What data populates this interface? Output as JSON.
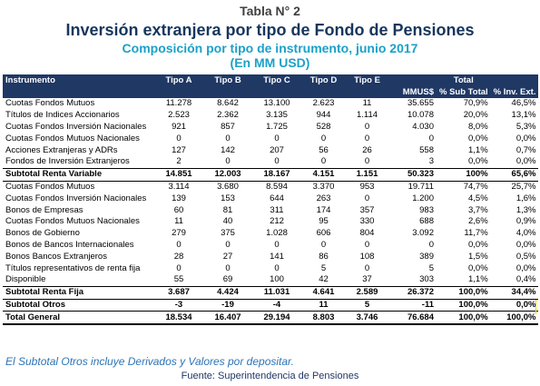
{
  "caption": "Tabla N° 2",
  "title": "Inversión extranjera por tipo de Fondo de Pensiones",
  "subtitle": "Composición por tipo de instrumento, junio 2017",
  "units": "(En MM USD)",
  "table": {
    "header_top": {
      "instrumento": "Instrumento",
      "tipo_a": "Tipo A",
      "tipo_b": "Tipo B",
      "tipo_c": "Tipo C",
      "tipo_d": "Tipo D",
      "tipo_e": "Tipo E",
      "total": "Total"
    },
    "header_sub": {
      "mmus": "MMUS$",
      "pct_sub": "% Sub Total",
      "pct_inv": "% Inv. Ext."
    },
    "rows": [
      {
        "kind": "row",
        "cells": [
          "Cuotas Fondos Mutuos",
          "11.278",
          "8.642",
          "13.100",
          "2.623",
          "11",
          "35.655",
          "70,9%",
          "46,5%"
        ]
      },
      {
        "kind": "row",
        "cells": [
          "Títulos de Indices Accionarios",
          "2.523",
          "2.362",
          "3.135",
          "944",
          "1.114",
          "10.078",
          "20,0%",
          "13,1%"
        ]
      },
      {
        "kind": "row",
        "cells": [
          "Cuotas Fondos Inversión Nacionales",
          "921",
          "857",
          "1.725",
          "528",
          "0",
          "4.030",
          "8,0%",
          "5,3%"
        ]
      },
      {
        "kind": "row",
        "cells": [
          "Cuotas Fondos Mutuos Nacionales",
          "0",
          "0",
          "0",
          "0",
          "0",
          "0",
          "0,0%",
          "0,0%"
        ]
      },
      {
        "kind": "row",
        "cells": [
          "Acciones Extranjeras y ADRs",
          "127",
          "142",
          "207",
          "56",
          "26",
          "558",
          "1,1%",
          "0,7%"
        ]
      },
      {
        "kind": "row",
        "cells": [
          "Fondos de Inversión Extranjeros",
          "2",
          "0",
          "0",
          "0",
          "0",
          "3",
          "0,0%",
          "0,0%"
        ]
      },
      {
        "kind": "subtotal",
        "cells": [
          "Subtotal Renta Variable",
          "14.851",
          "12.003",
          "18.167",
          "4.151",
          "1.151",
          "50.323",
          "100%",
          "65,6%"
        ]
      },
      {
        "kind": "row",
        "cells": [
          "Cuotas Fondos Mutuos",
          "3.114",
          "3.680",
          "8.594",
          "3.370",
          "953",
          "19.711",
          "74,7%",
          "25,7%"
        ]
      },
      {
        "kind": "row",
        "cells": [
          "Cuotas Fondos Inversión Nacionales",
          "139",
          "153",
          "644",
          "263",
          "0",
          "1.200",
          "4,5%",
          "1,6%"
        ]
      },
      {
        "kind": "row",
        "cells": [
          "Bonos de Empresas",
          "60",
          "81",
          "311",
          "174",
          "357",
          "983",
          "3,7%",
          "1,3%"
        ]
      },
      {
        "kind": "row",
        "cells": [
          "Cuotas Fondos Mutuos Nacionales",
          "11",
          "40",
          "212",
          "95",
          "330",
          "688",
          "2,6%",
          "0,9%"
        ]
      },
      {
        "kind": "row",
        "cells": [
          "Bonos de Gobierno",
          "279",
          "375",
          "1.028",
          "606",
          "804",
          "3.092",
          "11,7%",
          "4,0%"
        ]
      },
      {
        "kind": "row",
        "cells": [
          "Bonos de Bancos Internacionales",
          "0",
          "0",
          "0",
          "0",
          "0",
          "0",
          "0,0%",
          "0,0%"
        ]
      },
      {
        "kind": "row",
        "cells": [
          "Bonos Bancos Extranjeros",
          "28",
          "27",
          "141",
          "86",
          "108",
          "389",
          "1,5%",
          "0,5%"
        ]
      },
      {
        "kind": "row",
        "cells": [
          "Títulos representativos de renta fija",
          "0",
          "0",
          "0",
          "5",
          "0",
          "5",
          "0,0%",
          "0,0%"
        ]
      },
      {
        "kind": "row",
        "cells": [
          "Disponible",
          "55",
          "69",
          "100",
          "42",
          "37",
          "303",
          "1,1%",
          "0,4%"
        ]
      },
      {
        "kind": "subtotal",
        "cells": [
          "Subtotal Renta Fija",
          "3.687",
          "4.424",
          "11.031",
          "4.641",
          "2.589",
          "26.372",
          "100,0%",
          "34,4%"
        ]
      },
      {
        "kind": "subtotal",
        "cells": [
          "Subtotal Otros",
          "-3",
          "-19",
          "-4",
          "11",
          "5",
          "-11",
          "100,0%",
          "0,0%"
        ]
      },
      {
        "kind": "total",
        "cells": [
          "Total General",
          "18.534",
          "16.407",
          "29.194",
          "8.803",
          "3.746",
          "76.684",
          "100,0%",
          "100,0%"
        ]
      }
    ]
  },
  "note": "El Subtotal Otros incluye Derivados y Valores por depositar.",
  "source": "Fuente: Superintendencia de Pensiones"
}
